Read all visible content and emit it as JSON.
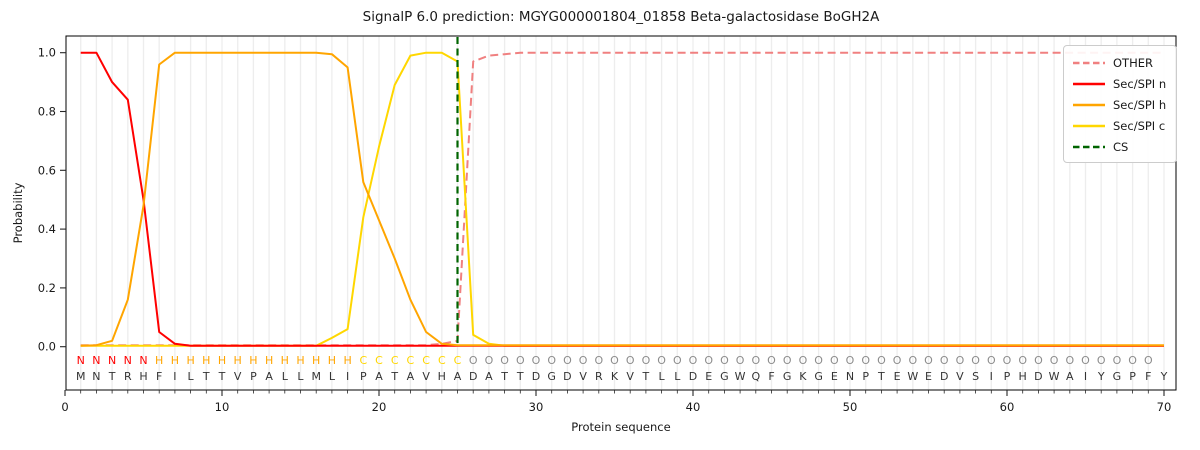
{
  "chart_data": {
    "type": "line",
    "title": "SignalP 6.0 prediction: MGYG000001804_01858 Beta-galactosidase BoGH2A",
    "xlabel": "Protein sequence",
    "ylabel": "Probability",
    "xlim": [
      0,
      70.8
    ],
    "ylim": [
      -0.15,
      1.06
    ],
    "xticks": [
      0,
      10,
      20,
      30,
      40,
      50,
      60,
      70
    ],
    "yticks": [
      "0.0",
      "0.2",
      "0.4",
      "0.6",
      "0.8",
      "1.0"
    ],
    "grid": "vertical line at every residue position, no horizontal grid",
    "legend_position": "upper right",
    "legend_entries": [
      "OTHER",
      "Sec/SPI n",
      "Sec/SPI h",
      "Sec/SPI c",
      "CS"
    ],
    "cs_position": 25,
    "sequence": "MNTRHFILTTVPALLMLIPATAVHADATTDGDVRKVTLLDEGWQFGKGENPTEWEDVSIPHDWAIYGPFY",
    "region_labels": "NNNNNHHHHHHHHHHHHHCCCCCCCOOOOOOOOOOOOOOOOOOOOOOOOOOOOOOOOOOOOOOOOOOOO",
    "region_colors": {
      "N": "#ff0000",
      "H": "#ffa500",
      "C": "#ffd700",
      "O": "#8c8c8c"
    },
    "residue_color": "#333333",
    "x": [
      1,
      2,
      3,
      4,
      5,
      6,
      7,
      8,
      9,
      10,
      11,
      12,
      13,
      14,
      15,
      16,
      17,
      18,
      19,
      20,
      21,
      22,
      23,
      24,
      25,
      26,
      27,
      28,
      29,
      30,
      31,
      32,
      33,
      34,
      35,
      36,
      37,
      38,
      39,
      40,
      41,
      42,
      43,
      44,
      45,
      46,
      47,
      48,
      49,
      50,
      51,
      52,
      53,
      54,
      55,
      56,
      57,
      58,
      59,
      60,
      61,
      62,
      63,
      64,
      65,
      66,
      67,
      68,
      69,
      70
    ],
    "series": [
      {
        "name": "OTHER",
        "color": "#f08080",
        "style": "dashed",
        "values": [
          0.005,
          0.005,
          0.005,
          0.005,
          0.005,
          0.005,
          0.005,
          0.005,
          0.005,
          0.005,
          0.005,
          0.005,
          0.005,
          0.005,
          0.005,
          0.005,
          0.005,
          0.005,
          0.005,
          0.005,
          0.005,
          0.005,
          0.005,
          0.01,
          0.02,
          0.97,
          0.99,
          0.995,
          1,
          1,
          1,
          1,
          1,
          1,
          1,
          1,
          1,
          1,
          1,
          1,
          1,
          1,
          1,
          1,
          1,
          1,
          1,
          1,
          1,
          1,
          1,
          1,
          1,
          1,
          1,
          1,
          1,
          1,
          1,
          1,
          1,
          1,
          1,
          1,
          1,
          1,
          1,
          1,
          1,
          1
        ]
      },
      {
        "name": "Sec/SPI n",
        "color": "#ff0000",
        "style": "solid",
        "values": [
          1,
          1,
          0.9,
          0.84,
          0.5,
          0.05,
          0.01,
          0.003,
          0.003,
          0.003,
          0.003,
          0.003,
          0.003,
          0.003,
          0.003,
          0.003,
          0.003,
          0.003,
          0.003,
          0.003,
          0.003,
          0.003,
          0.003,
          0.003,
          0.003,
          0.003,
          0.003,
          0.003,
          0.003,
          0.003,
          0.003,
          0.003,
          0.003,
          0.003,
          0.003,
          0.003,
          0.003,
          0.003,
          0.003,
          0.003,
          0.003,
          0.003,
          0.003,
          0.003,
          0.003,
          0.003,
          0.003,
          0.003,
          0.003,
          0.003,
          0.003,
          0.003,
          0.003,
          0.003,
          0.003,
          0.003,
          0.003,
          0.003,
          0.003,
          0.003,
          0.003,
          0.003,
          0.003,
          0.003,
          0.003,
          0.003,
          0.003,
          0.003,
          0.003,
          0.003
        ]
      },
      {
        "name": "Sec/SPI h",
        "color": "#ffa500",
        "style": "solid",
        "values": [
          0.003,
          0.005,
          0.02,
          0.16,
          0.48,
          0.96,
          1,
          1,
          1,
          1,
          1,
          1,
          1,
          1,
          1,
          1,
          0.995,
          0.95,
          0.56,
          0.43,
          0.3,
          0.16,
          0.05,
          0.01,
          0.005,
          0.005,
          0.005,
          0.005,
          0.005,
          0.005,
          0.005,
          0.005,
          0.005,
          0.005,
          0.005,
          0.005,
          0.005,
          0.005,
          0.005,
          0.005,
          0.005,
          0.005,
          0.005,
          0.005,
          0.005,
          0.005,
          0.005,
          0.005,
          0.005,
          0.005,
          0.005,
          0.005,
          0.005,
          0.005,
          0.005,
          0.005,
          0.005,
          0.005,
          0.005,
          0.005,
          0.005,
          0.005,
          0.005,
          0.005,
          0.005,
          0.005,
          0.005,
          0.005,
          0.005,
          0.005
        ]
      },
      {
        "name": "Sec/SPI c",
        "color": "#ffd700",
        "style": "solid",
        "values": [
          0.003,
          0.003,
          0.003,
          0.003,
          0.003,
          0.003,
          0.003,
          0.003,
          0.003,
          0.003,
          0.003,
          0.003,
          0.003,
          0.003,
          0.003,
          0.003,
          0.03,
          0.06,
          0.44,
          0.68,
          0.89,
          0.99,
          1,
          1,
          0.97,
          0.04,
          0.01,
          0.003,
          0.003,
          0.003,
          0.003,
          0.003,
          0.003,
          0.003,
          0.003,
          0.003,
          0.003,
          0.003,
          0.003,
          0.003,
          0.003,
          0.003,
          0.003,
          0.003,
          0.003,
          0.003,
          0.003,
          0.003,
          0.003,
          0.003,
          0.003,
          0.003,
          0.003,
          0.003,
          0.003,
          0.003,
          0.003,
          0.003,
          0.003,
          0.003,
          0.003,
          0.003,
          0.003,
          0.003,
          0.003,
          0.003,
          0.003,
          0.003,
          0.003,
          0.003
        ]
      },
      {
        "name": "CS",
        "color": "#006400",
        "style": "dashed-vline",
        "x": 25
      }
    ]
  }
}
